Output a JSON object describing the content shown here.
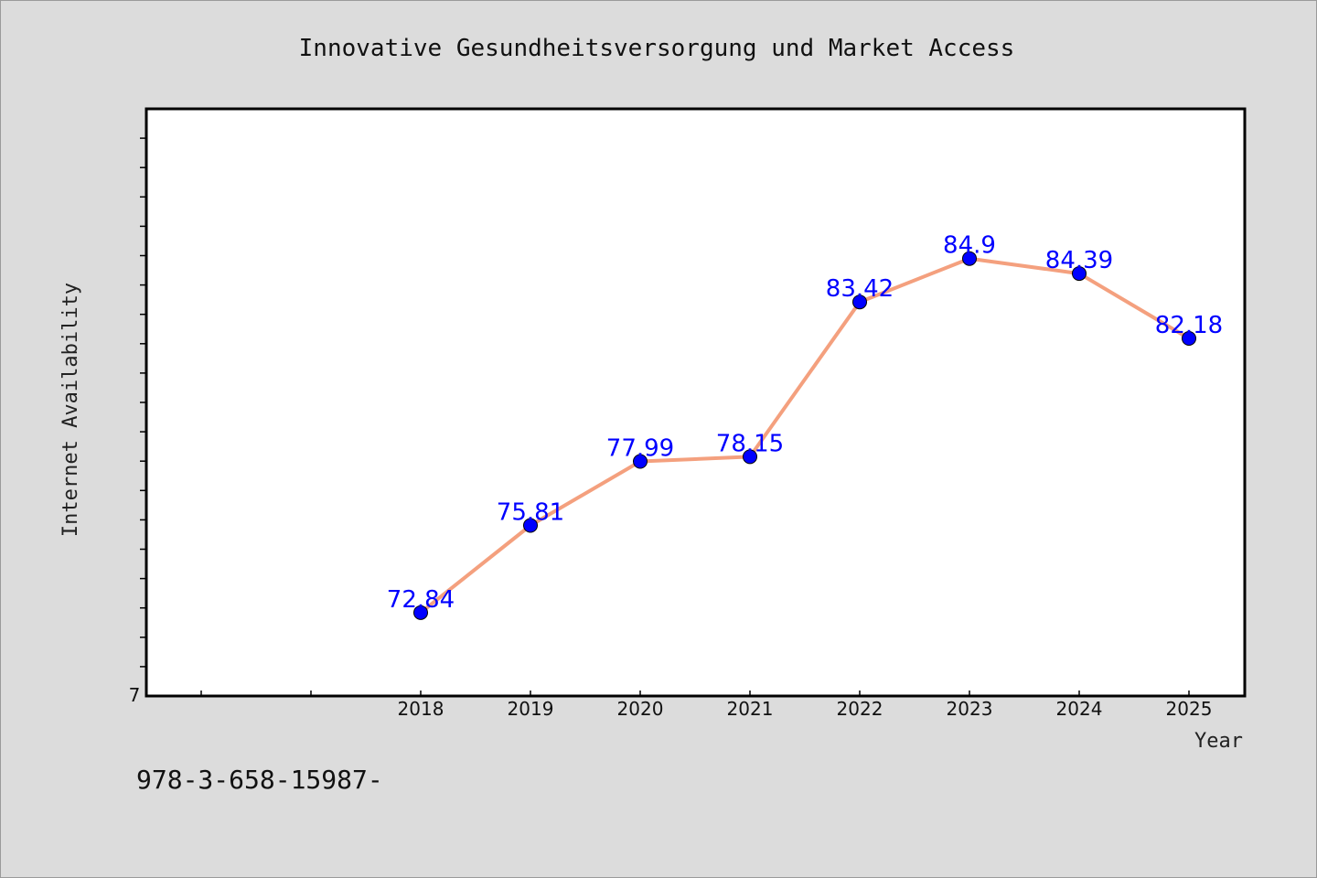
{
  "chart_data": {
    "type": "line",
    "title": "Innovative Gesundheitsversorgung und Market Access",
    "xlabel": "Year",
    "ylabel": "Internet Availability",
    "categories": [
      "2018",
      "2019",
      "2020",
      "2021",
      "2022",
      "2023",
      "2024",
      "2025"
    ],
    "series": [
      {
        "values": [
          72.84,
          75.81,
          77.99,
          78.15,
          83.42,
          84.9,
          84.39,
          82.18
        ],
        "labels": [
          "72.84",
          "75.81",
          "77.99",
          "78.15",
          "83.42",
          "84.9",
          "84.39",
          "82.18"
        ]
      }
    ],
    "ylim": [
      70,
      90
    ],
    "y_tick_labels": [
      "7"
    ],
    "grid": false,
    "colors": {
      "line": "#f4a07e",
      "marker": "#0000ff",
      "label": "#0000ff",
      "plot_bg": "#ffffff",
      "page_bg": "#dcdcdc"
    }
  },
  "footnote": "978-3-658-15987-"
}
